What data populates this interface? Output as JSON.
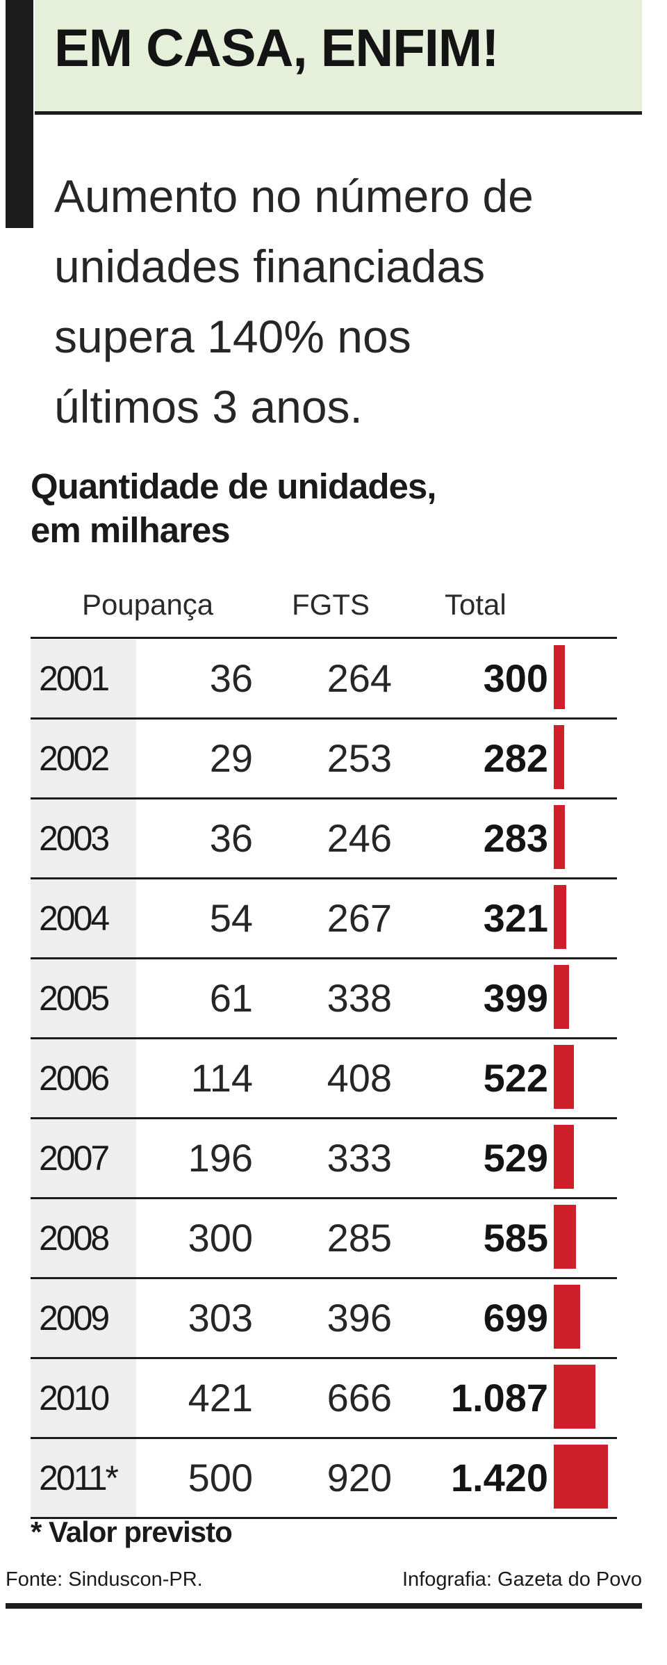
{
  "header": {
    "title": "EM CASA, ENFIM!",
    "subtitle_lines": [
      "Aumento no número de",
      "unidades financiadas",
      "supera 140% nos",
      "últimos 3 anos."
    ]
  },
  "chart_data": {
    "type": "table",
    "title_lines": [
      "Quantidade de unidades,",
      "em milhares"
    ],
    "columns": [
      "Poupança",
      "FGTS",
      "Total"
    ],
    "rows": [
      {
        "year": "2001",
        "poupanca": "36",
        "fgts": "264",
        "total": "300",
        "total_value": 300
      },
      {
        "year": "2002",
        "poupanca": "29",
        "fgts": "253",
        "total": "282",
        "total_value": 282
      },
      {
        "year": "2003",
        "poupanca": "36",
        "fgts": "246",
        "total": "283",
        "total_value": 283
      },
      {
        "year": "2004",
        "poupanca": "54",
        "fgts": "267",
        "total": "321",
        "total_value": 321
      },
      {
        "year": "2005",
        "poupanca": "61",
        "fgts": "338",
        "total": "399",
        "total_value": 399
      },
      {
        "year": "2006",
        "poupanca": "114",
        "fgts": "408",
        "total": "522",
        "total_value": 522
      },
      {
        "year": "2007",
        "poupanca": "196",
        "fgts": "333",
        "total": "529",
        "total_value": 529
      },
      {
        "year": "2008",
        "poupanca": "300",
        "fgts": "285",
        "total": "585",
        "total_value": 585
      },
      {
        "year": "2009",
        "poupanca": "303",
        "fgts": "396",
        "total": "699",
        "total_value": 699
      },
      {
        "year": "2010",
        "poupanca": "421",
        "fgts": "666",
        "total": "1.087",
        "total_value": 1087
      },
      {
        "year": "2011*",
        "poupanca": "500",
        "fgts": "920",
        "total": "1.420",
        "total_value": 1420
      }
    ],
    "bar_max": 1420,
    "bar_color": "#cf1f2b",
    "footnote": "* Valor previsto"
  },
  "footer": {
    "source": "Fonte: Sinduscon-PR.",
    "credit": "Infografia: Gazeta do Povo"
  }
}
